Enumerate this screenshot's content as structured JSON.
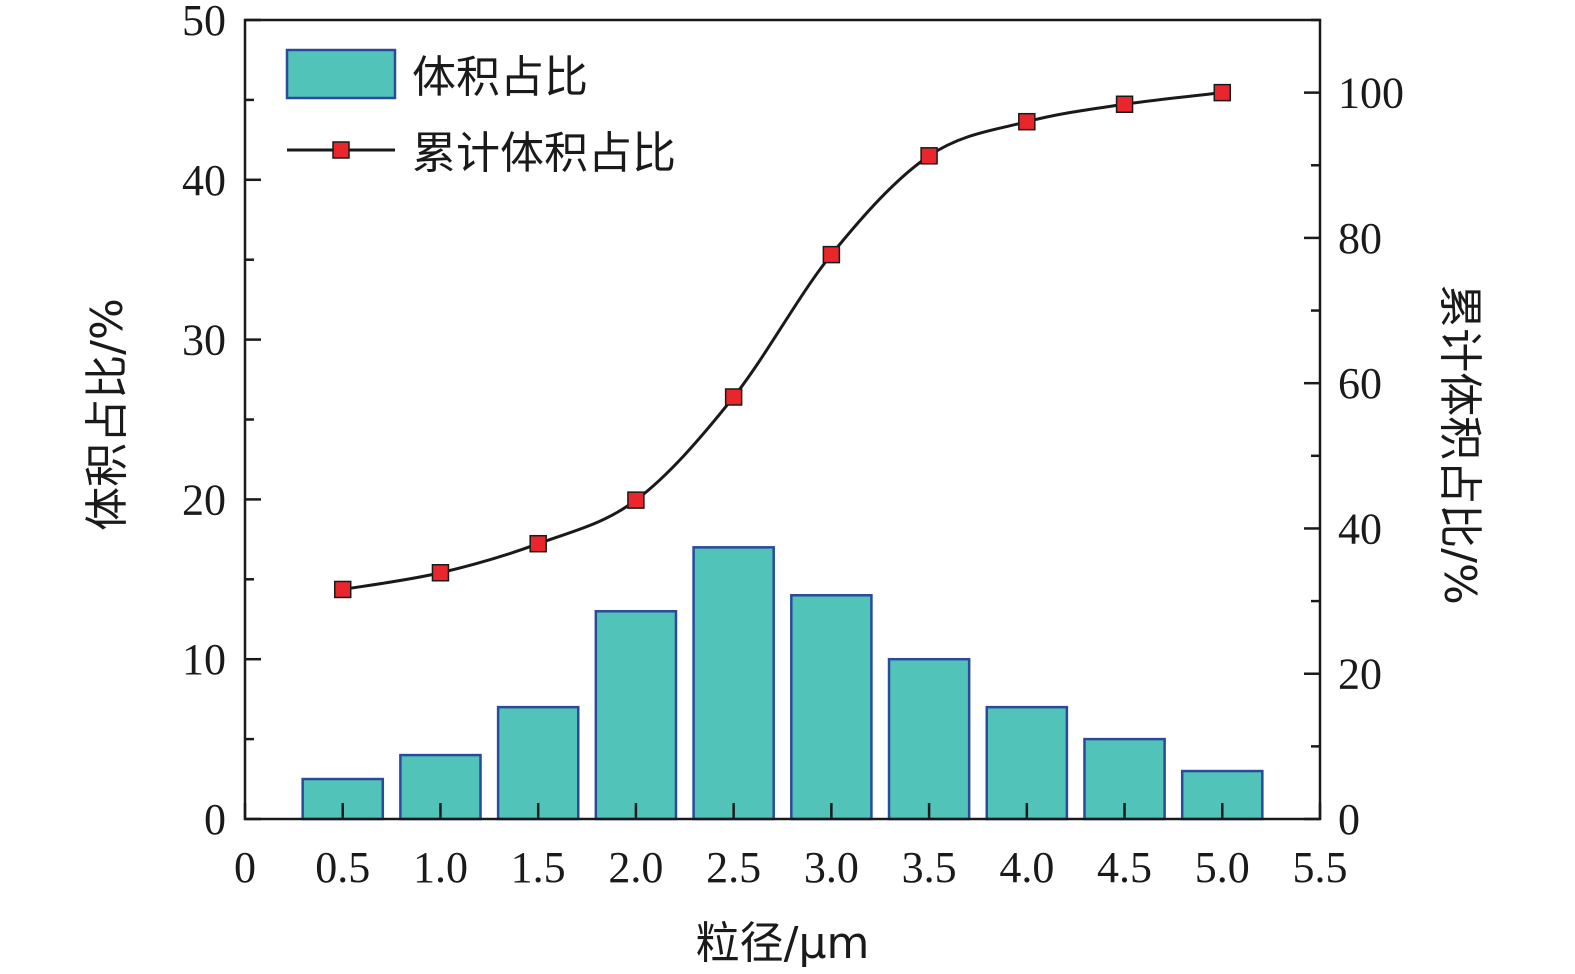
{
  "chart_data": {
    "type": "bar",
    "xlabel": "粒径/μm",
    "ylabel": "体积占比/%",
    "y2label": "累计体积占比/%",
    "xlim": [
      0,
      5.5
    ],
    "ylim": [
      0,
      50
    ],
    "y2lim": [
      0,
      110
    ],
    "x_ticks": [
      "0",
      "0.5",
      "1.0",
      "1.5",
      "2.0",
      "2.5",
      "3.0",
      "3.5",
      "4.0",
      "4.5",
      "5.0",
      "5.5"
    ],
    "y_ticks": [
      "0",
      "10",
      "20",
      "30",
      "40",
      "50"
    ],
    "y2_ticks": [
      "0",
      "20",
      "40",
      "60",
      "80",
      "100"
    ],
    "legend_position": "top-left",
    "series": [
      {
        "name": "体积占比",
        "type": "bar",
        "axis": "left",
        "color": "#52c3b8",
        "edge_color": "#2a4a9c",
        "x": [
          0.5,
          1.0,
          1.5,
          2.0,
          2.5,
          3.0,
          3.5,
          4.0,
          4.5,
          5.0
        ],
        "values": [
          2.5,
          4,
          7,
          13,
          17,
          14,
          10,
          7,
          5,
          3
        ]
      },
      {
        "name": "累计体积占比",
        "type": "line",
        "axis": "right",
        "line_color": "#1a1a1a",
        "marker_color": "#e8262b",
        "x": [
          0.5,
          1.0,
          1.5,
          2.0,
          2.5,
          3.0,
          3.5,
          4.0,
          4.5,
          5.0
        ],
        "values": [
          31.6,
          33.9,
          37.9,
          43.9,
          58.1,
          77.7,
          91.3,
          96.0,
          98.4,
          100.0
        ]
      }
    ]
  }
}
